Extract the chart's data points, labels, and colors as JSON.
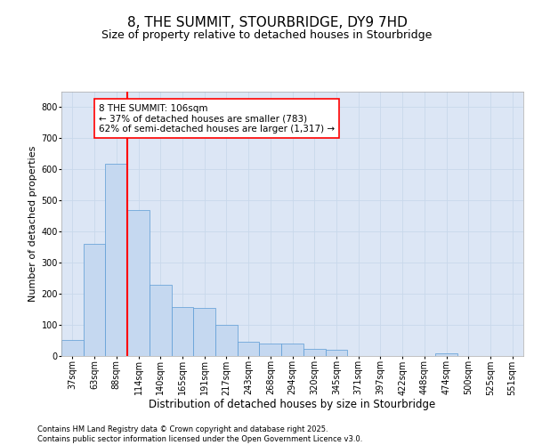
{
  "title": "8, THE SUMMIT, STOURBRIDGE, DY9 7HD",
  "subtitle": "Size of property relative to detached houses in Stourbridge",
  "xlabel": "Distribution of detached houses by size in Stourbridge",
  "ylabel": "Number of detached properties",
  "categories": [
    "37sqm",
    "63sqm",
    "88sqm",
    "114sqm",
    "140sqm",
    "165sqm",
    "191sqm",
    "217sqm",
    "243sqm",
    "268sqm",
    "294sqm",
    "320sqm",
    "345sqm",
    "371sqm",
    "397sqm",
    "422sqm",
    "448sqm",
    "474sqm",
    "500sqm",
    "525sqm",
    "551sqm"
  ],
  "values": [
    52,
    360,
    617,
    470,
    230,
    158,
    155,
    100,
    45,
    40,
    40,
    22,
    20,
    0,
    0,
    0,
    0,
    8,
    0,
    0,
    0
  ],
  "bar_color": "#c5d8f0",
  "bar_edge_color": "#5b9bd5",
  "grid_color": "#c8d8eb",
  "bg_color": "#dce6f5",
  "vline_color": "red",
  "annotation_text": "8 THE SUMMIT: 106sqm\n← 37% of detached houses are smaller (783)\n62% of semi-detached houses are larger (1,317) →",
  "annotation_box_color": "white",
  "annotation_box_edge_color": "red",
  "ylim": [
    0,
    850
  ],
  "yticks": [
    0,
    100,
    200,
    300,
    400,
    500,
    600,
    700,
    800
  ],
  "footer": "Contains HM Land Registry data © Crown copyright and database right 2025.\nContains public sector information licensed under the Open Government Licence v3.0.",
  "title_fontsize": 11,
  "subtitle_fontsize": 9,
  "tick_fontsize": 7,
  "xlabel_fontsize": 8.5,
  "ylabel_fontsize": 8,
  "annotation_fontsize": 7.5,
  "footer_fontsize": 6
}
